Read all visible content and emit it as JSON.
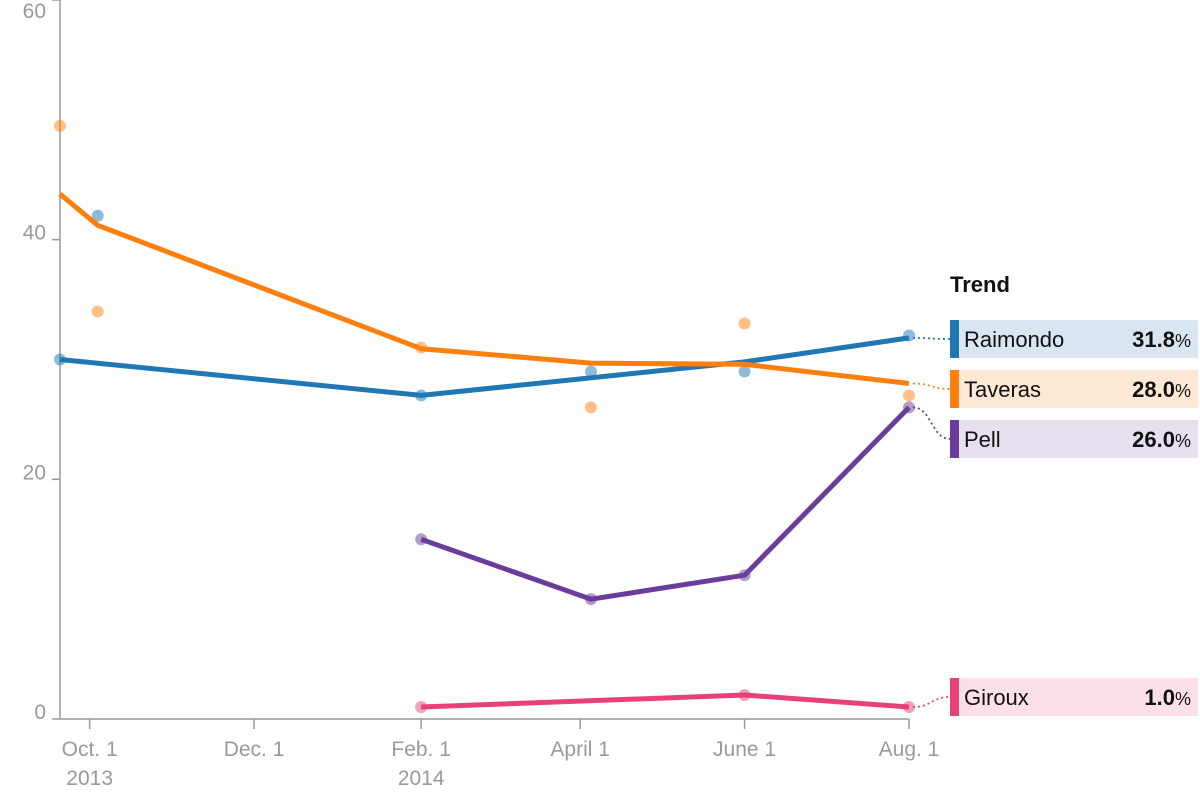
{
  "chart_data": {
    "type": "line",
    "x_axis": {
      "type": "date",
      "ticks": [
        {
          "date": "2013-10-01",
          "label": "Oct. 1",
          "sublabel": "2013"
        },
        {
          "date": "2013-12-01",
          "label": "Dec. 1",
          "sublabel": ""
        },
        {
          "date": "2014-02-01",
          "label": "Feb. 1",
          "sublabel": "2014"
        },
        {
          "date": "2014-04-01",
          "label": "April 1",
          "sublabel": ""
        },
        {
          "date": "2014-06-01",
          "label": "June 1",
          "sublabel": ""
        },
        {
          "date": "2014-08-01",
          "label": "Aug. 1",
          "sublabel": ""
        }
      ],
      "range": [
        "2013-09-20",
        "2014-08-01"
      ]
    },
    "y_axis": {
      "ticks": [
        0,
        20,
        40,
        60
      ],
      "ylim": [
        0,
        60
      ]
    },
    "legend_title": "Trend",
    "unit": "%",
    "series": [
      {
        "name": "Raimondo",
        "color": "#1f77b4",
        "legend_bg": "#d9e6f2",
        "value_label": "31.8",
        "points": [
          [
            "2013-09-20",
            30
          ],
          [
            "2013-10-04",
            42
          ],
          [
            "2014-02-01",
            27
          ],
          [
            "2014-04-05",
            29
          ],
          [
            "2014-06-01",
            29
          ],
          [
            "2014-08-01",
            32
          ]
        ],
        "trend": [
          [
            "2013-09-20",
            30
          ],
          [
            "2014-02-01",
            27
          ],
          [
            "2014-06-01",
            29.8
          ],
          [
            "2014-08-01",
            31.8
          ]
        ]
      },
      {
        "name": "Taveras",
        "color": "#ff7f0e",
        "legend_bg": "#fde8d6",
        "value_label": "28.0",
        "points": [
          [
            "2013-09-20",
            49.5
          ],
          [
            "2013-10-04",
            34
          ],
          [
            "2014-02-01",
            31
          ],
          [
            "2014-04-05",
            26
          ],
          [
            "2014-06-01",
            33
          ],
          [
            "2014-08-01",
            27
          ]
        ],
        "trend": [
          [
            "2013-09-20",
            43.8
          ],
          [
            "2013-10-04",
            41.2
          ],
          [
            "2014-02-01",
            30.9
          ],
          [
            "2014-04-05",
            29.7
          ],
          [
            "2014-06-01",
            29.6
          ],
          [
            "2014-08-01",
            28.0
          ]
        ]
      },
      {
        "name": "Pell",
        "color": "#6a3d9a",
        "legend_bg": "#e6e0ee",
        "value_label": "26.0",
        "points": [
          [
            "2014-02-01",
            15
          ],
          [
            "2014-04-05",
            10
          ],
          [
            "2014-06-01",
            12
          ],
          [
            "2014-08-01",
            26
          ]
        ],
        "trend": [
          [
            "2014-02-01",
            15
          ],
          [
            "2014-04-05",
            10
          ],
          [
            "2014-06-01",
            12
          ],
          [
            "2014-08-01",
            26
          ]
        ]
      },
      {
        "name": "Giroux",
        "color": "#e8417a",
        "legend_bg": "#fbe0ea",
        "value_label": "1.0",
        "points": [
          [
            "2014-02-01",
            1
          ],
          [
            "2014-06-01",
            2
          ],
          [
            "2014-08-01",
            1
          ]
        ],
        "trend": [
          [
            "2014-02-01",
            1
          ],
          [
            "2014-06-01",
            2
          ],
          [
            "2014-08-01",
            1
          ]
        ]
      }
    ]
  }
}
